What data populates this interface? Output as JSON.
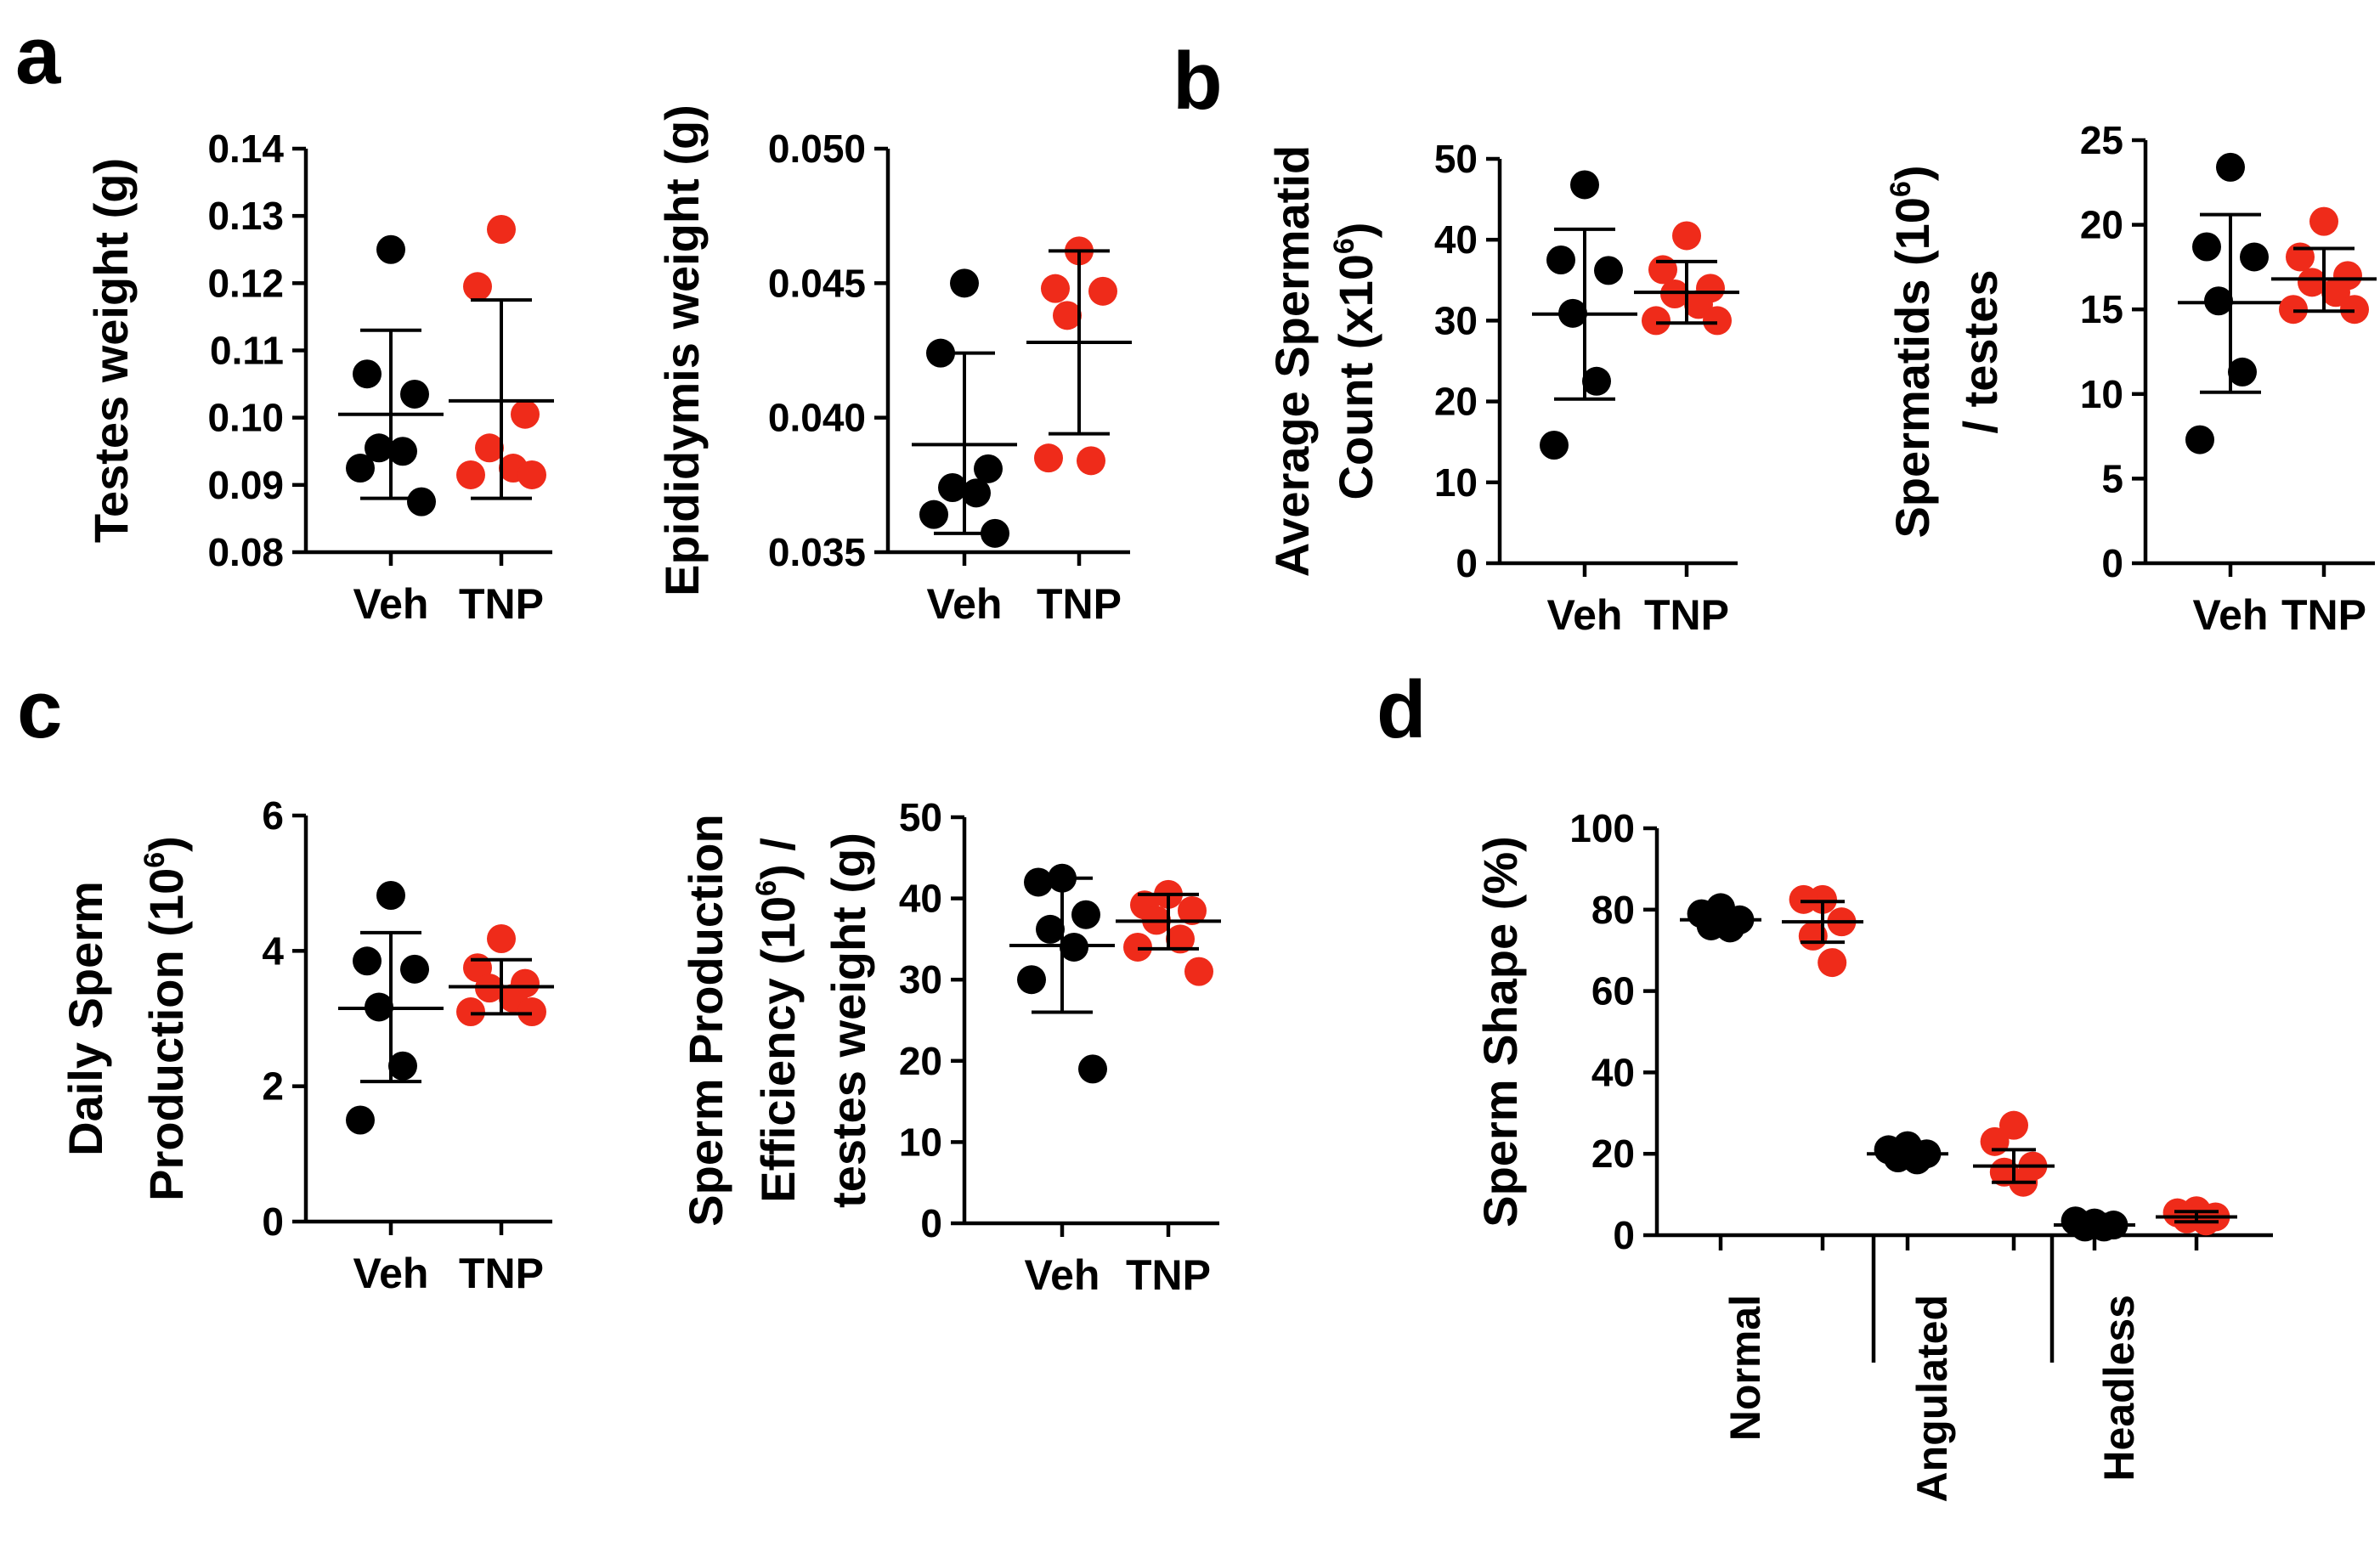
{
  "colors": {
    "veh": "#000000",
    "tnp": "#ef2b1a"
  },
  "panel_letters": [
    "a",
    "b",
    "c",
    "d"
  ],
  "chart_data": [
    {
      "id": "testes-weight",
      "panel": "a",
      "type": "scatter",
      "ylabel": [
        "Testes weight (g)"
      ],
      "ylim": [
        0.08,
        0.14
      ],
      "yticks": [
        0.08,
        0.09,
        0.1,
        0.11,
        0.12,
        0.13,
        0.14
      ],
      "ytick_labels": [
        "0.08",
        "0.09",
        "0.10",
        "0.11",
        "0.12",
        "0.13",
        "0.14"
      ],
      "categories": [
        "Veh",
        "TNP"
      ],
      "groups": [
        {
          "name": "Veh",
          "color": "veh",
          "mean": 0.1005,
          "sd_low": 0.088,
          "sd_high": 0.113,
          "points": [
            0.125,
            0.1065,
            0.1035,
            0.0955,
            0.095,
            0.0925,
            0.0875
          ]
        },
        {
          "name": "TNP",
          "color": "tnp",
          "mean": 0.1025,
          "sd_low": 0.088,
          "sd_high": 0.1175,
          "points": [
            0.128,
            0.1195,
            0.1005,
            0.0955,
            0.0925,
            0.0915,
            0.0915
          ]
        }
      ]
    },
    {
      "id": "epididymis-weight",
      "panel": "a",
      "type": "scatter",
      "ylabel": [
        "Epididymis weight (g)"
      ],
      "ylim": [
        0.035,
        0.05
      ],
      "yticks": [
        0.035,
        0.04,
        0.045,
        0.05
      ],
      "ytick_labels": [
        "0.035",
        "0.040",
        "0.045",
        "0.050"
      ],
      "categories": [
        "Veh",
        "TNP"
      ],
      "groups": [
        {
          "name": "Veh",
          "color": "veh",
          "mean": 0.039,
          "sd_low": 0.0357,
          "sd_high": 0.0424,
          "points": [
            0.045,
            0.0424,
            0.0381,
            0.0374,
            0.0372,
            0.0364,
            0.0357
          ]
        },
        {
          "name": "TNP",
          "color": "tnp",
          "mean": 0.0428,
          "sd_low": 0.0394,
          "sd_high": 0.0462,
          "points": [
            0.0462,
            0.0448,
            0.0447,
            0.0438,
            0.0384,
            0.0385
          ]
        }
      ]
    },
    {
      "id": "average-spermatid-count",
      "panel": "b",
      "type": "scatter",
      "ylabel": [
        "Average Spermatid",
        "Count (x10^6)"
      ],
      "ylim": [
        0,
        50
      ],
      "yticks": [
        0,
        10,
        20,
        30,
        40,
        50
      ],
      "ytick_labels": [
        "0",
        "10",
        "20",
        "30",
        "40",
        "50"
      ],
      "categories": [
        "Veh",
        "TNP"
      ],
      "groups": [
        {
          "name": "Veh",
          "color": "veh",
          "mean": 30.8,
          "sd_low": 20.3,
          "sd_high": 41.3,
          "points": [
            46.8,
            37.5,
            36.2,
            30.9,
            22.5,
            14.6
          ]
        },
        {
          "name": "TNP",
          "color": "tnp",
          "mean": 33.5,
          "sd_low": 29.7,
          "sd_high": 37.3,
          "points": [
            40.5,
            36.3,
            34.0,
            33.3,
            32.0,
            30.0,
            30.0
          ]
        }
      ]
    },
    {
      "id": "spermatids-per-testes",
      "panel": "b",
      "type": "scatter",
      "ylabel": [
        "Spermatids (10^6)",
        "/ testes"
      ],
      "ylim": [
        0,
        25
      ],
      "yticks": [
        0,
        5,
        10,
        15,
        20,
        25
      ],
      "ytick_labels": [
        "0",
        "5",
        "10",
        "15",
        "20",
        "25"
      ],
      "categories": [
        "Veh",
        "TNP"
      ],
      "groups": [
        {
          "name": "Veh",
          "color": "veh",
          "mean": 15.4,
          "sd_low": 10.1,
          "sd_high": 20.6,
          "points": [
            23.4,
            18.7,
            18.1,
            15.5,
            11.3,
            7.3
          ]
        },
        {
          "name": "TNP",
          "color": "tnp",
          "mean": 16.8,
          "sd_low": 14.9,
          "sd_high": 18.6,
          "points": [
            20.2,
            18.1,
            17.0,
            16.6,
            16.0,
            15.0,
            15.0
          ]
        }
      ]
    },
    {
      "id": "daily-sperm-production",
      "panel": "c",
      "type": "scatter",
      "ylabel": [
        "Daily Sperm",
        "Production (10^6)"
      ],
      "ylim": [
        0,
        6
      ],
      "yticks": [
        0,
        2,
        4,
        6
      ],
      "ytick_labels": [
        "0",
        "2",
        "4",
        "6"
      ],
      "categories": [
        "Veh",
        "TNP"
      ],
      "groups": [
        {
          "name": "Veh",
          "color": "veh",
          "mean": 3.15,
          "sd_low": 2.07,
          "sd_high": 4.27,
          "points": [
            4.82,
            3.85,
            3.73,
            3.17,
            2.3,
            1.5
          ]
        },
        {
          "name": "TNP",
          "color": "tnp",
          "mean": 3.47,
          "sd_low": 3.07,
          "sd_high": 3.87,
          "points": [
            4.18,
            3.75,
            3.52,
            3.45,
            3.3,
            3.1,
            3.1
          ]
        }
      ]
    },
    {
      "id": "sperm-production-efficiency",
      "panel": "c",
      "type": "scatter",
      "ylabel": [
        "Sperm Production",
        "Efficiency (10^6) /",
        "testes weight (g)"
      ],
      "ylim": [
        0,
        50
      ],
      "yticks": [
        0,
        10,
        20,
        30,
        40,
        50
      ],
      "ytick_labels": [
        "0",
        "10",
        "20",
        "30",
        "40",
        "50"
      ],
      "categories": [
        "Veh",
        "TNP"
      ],
      "groups": [
        {
          "name": "Veh",
          "color": "veh",
          "mean": 34.2,
          "sd_low": 26.0,
          "sd_high": 42.5,
          "points": [
            42.5,
            42.0,
            38.0,
            36.2,
            34.0,
            30.0,
            19.0
          ]
        },
        {
          "name": "TNP",
          "color": "tnp",
          "mean": 37.2,
          "sd_low": 33.8,
          "sd_high": 40.5,
          "points": [
            40.5,
            39.2,
            38.5,
            37.3,
            35.0,
            34.0,
            31.0
          ]
        }
      ]
    },
    {
      "id": "sperm-shape",
      "panel": "d",
      "type": "scatter",
      "ylabel": [
        "Sperm Shape (%)"
      ],
      "ylim": [
        0,
        100
      ],
      "yticks": [
        0,
        20,
        40,
        60,
        80,
        100
      ],
      "ytick_labels": [
        "0",
        "20",
        "40",
        "60",
        "80",
        "100"
      ],
      "categories": [
        "Normal",
        "Angulated",
        "Headless"
      ],
      "groups": [
        {
          "category": "Normal",
          "name": "Veh",
          "color": "veh",
          "mean": 77.5,
          "sd_low": 75.6,
          "sd_high": 79.4,
          "points": [
            80.5,
            79.0,
            77.5,
            76.0,
            75.5
          ]
        },
        {
          "category": "Normal",
          "name": "TNP",
          "color": "tnp",
          "mean": 77.0,
          "sd_low": 72.0,
          "sd_high": 82.0,
          "points": [
            82.5,
            82.5,
            77.0,
            73.5,
            67.0
          ]
        },
        {
          "category": "Angulated",
          "name": "Veh",
          "color": "veh",
          "mean": 20.0,
          "sd_low": 18.5,
          "sd_high": 21.5,
          "points": [
            22.0,
            21.0,
            20.0,
            19.0,
            18.5
          ]
        },
        {
          "category": "Angulated",
          "name": "TNP",
          "color": "tnp",
          "mean": 17.0,
          "sd_low": 13.0,
          "sd_high": 21.0,
          "points": [
            27.0,
            23.0,
            17.0,
            15.5,
            13.0
          ]
        },
        {
          "category": "Headless",
          "name": "Veh",
          "color": "veh",
          "mean": 2.5,
          "sd_low": 1.7,
          "sd_high": 3.3,
          "points": [
            3.0,
            3.5,
            2.5,
            2.0,
            2.0
          ]
        },
        {
          "category": "Headless",
          "name": "TNP",
          "color": "tnp",
          "mean": 4.5,
          "sd_low": 3.3,
          "sd_high": 5.8,
          "points": [
            6.0,
            5.5,
            4.5,
            4.0,
            3.5
          ]
        }
      ]
    }
  ]
}
